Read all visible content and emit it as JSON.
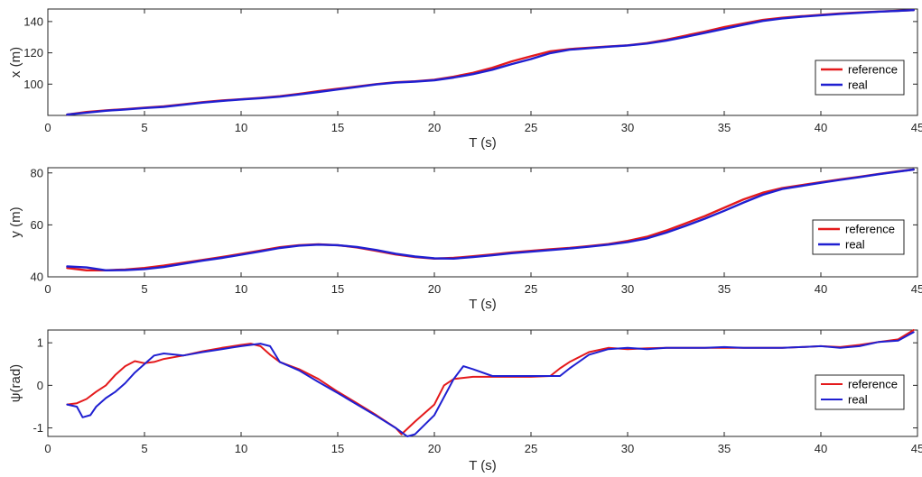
{
  "chart_data": [
    {
      "type": "line",
      "xlabel": "T (s)",
      "ylabel": "x (m)",
      "xlim": [
        0,
        45
      ],
      "ylim": [
        80,
        148
      ],
      "xticks": [
        0,
        5,
        10,
        15,
        20,
        25,
        30,
        35,
        40,
        45
      ],
      "yticks": [
        100,
        120,
        140
      ],
      "legend_position": "right",
      "series": [
        {
          "name": "reference",
          "color": "#e41a1c",
          "x": [
            1,
            2,
            3,
            4,
            5,
            6,
            7,
            8,
            9,
            10,
            11,
            12,
            13,
            14,
            15,
            16,
            17,
            18,
            19,
            20,
            21,
            22,
            23,
            24,
            25,
            26,
            27,
            28,
            29,
            30,
            31,
            32,
            33,
            34,
            35,
            36,
            37,
            38,
            39,
            40,
            41,
            42,
            43,
            44,
            44.8
          ],
          "y": [
            80.5,
            82.2,
            83.2,
            84.0,
            84.9,
            85.8,
            87.1,
            88.5,
            89.5,
            90.3,
            91.2,
            92.3,
            93.8,
            95.5,
            97.0,
            98.5,
            100.0,
            101.2,
            101.8,
            102.8,
            104.8,
            107.2,
            110.5,
            114.5,
            117.8,
            121.0,
            122.4,
            123.2,
            124.0,
            124.8,
            126.2,
            128.4,
            131.0,
            133.6,
            136.4,
            138.8,
            141.0,
            142.4,
            143.4,
            144.3,
            145.1,
            145.8,
            146.4,
            146.9,
            147.3
          ]
        },
        {
          "name": "real",
          "color": "#1f1fd1",
          "x": [
            1,
            2,
            3,
            4,
            5,
            6,
            7,
            8,
            9,
            10,
            11,
            12,
            13,
            14,
            15,
            16,
            17,
            18,
            19,
            20,
            21,
            22,
            23,
            24,
            25,
            26,
            27,
            28,
            29,
            30,
            31,
            32,
            33,
            34,
            35,
            36,
            37,
            38,
            39,
            40,
            41,
            42,
            43,
            44,
            44.8
          ],
          "y": [
            80.5,
            81.8,
            83.0,
            83.8,
            84.7,
            85.5,
            86.8,
            88.2,
            89.3,
            90.2,
            91.0,
            92.0,
            93.4,
            95.0,
            96.6,
            98.2,
            99.8,
            101.0,
            101.6,
            102.5,
            104.2,
            106.4,
            109.2,
            112.8,
            116.0,
            119.8,
            122.0,
            123.0,
            123.9,
            124.7,
            125.9,
            127.8,
            130.2,
            132.8,
            135.4,
            138.0,
            140.4,
            142.0,
            143.1,
            144.0,
            144.9,
            145.6,
            146.3,
            146.8,
            147.3
          ]
        }
      ]
    },
    {
      "type": "line",
      "xlabel": "T (s)",
      "ylabel": "y (m)",
      "xlim": [
        0,
        45
      ],
      "ylim": [
        40,
        82
      ],
      "xticks": [
        0,
        5,
        10,
        15,
        20,
        25,
        30,
        35,
        40,
        45
      ],
      "yticks": [
        40,
        60,
        80
      ],
      "legend_position": "right",
      "series": [
        {
          "name": "reference",
          "color": "#e41a1c",
          "x": [
            1,
            2,
            3,
            4,
            5,
            6,
            7,
            8,
            9,
            10,
            11,
            12,
            13,
            14,
            15,
            16,
            17,
            18,
            19,
            20,
            21,
            22,
            23,
            24,
            25,
            26,
            27,
            28,
            29,
            30,
            31,
            32,
            33,
            34,
            35,
            36,
            37,
            38,
            39,
            40,
            41,
            42,
            43,
            44,
            44.8
          ],
          "y": [
            43.4,
            42.5,
            42.5,
            42.8,
            43.4,
            44.3,
            45.4,
            46.5,
            47.6,
            48.8,
            50.1,
            51.4,
            52.2,
            52.5,
            52.2,
            51.3,
            50.0,
            48.6,
            47.6,
            47.0,
            47.3,
            47.9,
            48.6,
            49.4,
            50.0,
            50.6,
            51.1,
            51.8,
            52.6,
            53.8,
            55.4,
            57.8,
            60.6,
            63.4,
            66.6,
            69.8,
            72.4,
            74.2,
            75.3,
            76.4,
            77.5,
            78.5,
            79.6,
            80.6,
            81.3
          ]
        },
        {
          "name": "real",
          "color": "#1f1fd1",
          "x": [
            1,
            2,
            3,
            4,
            5,
            6,
            7,
            8,
            9,
            10,
            11,
            12,
            13,
            14,
            15,
            16,
            17,
            18,
            19,
            20,
            21,
            22,
            23,
            24,
            25,
            26,
            27,
            28,
            29,
            30,
            31,
            32,
            33,
            34,
            35,
            36,
            37,
            38,
            39,
            40,
            41,
            42,
            43,
            44,
            44.8
          ],
          "y": [
            44.0,
            43.6,
            42.5,
            42.6,
            43.0,
            43.8,
            45.0,
            46.2,
            47.3,
            48.5,
            49.8,
            51.1,
            52.0,
            52.4,
            52.2,
            51.5,
            50.3,
            48.9,
            47.8,
            47.1,
            47.0,
            47.6,
            48.3,
            49.1,
            49.7,
            50.3,
            50.9,
            51.6,
            52.4,
            53.4,
            54.8,
            57.0,
            59.6,
            62.4,
            65.4,
            68.6,
            71.6,
            73.8,
            75.0,
            76.2,
            77.3,
            78.4,
            79.5,
            80.5,
            81.3
          ]
        }
      ]
    },
    {
      "type": "line",
      "xlabel": "T (s)",
      "ylabel": "ψ(rad)",
      "xlim": [
        0,
        45
      ],
      "ylim": [
        -1.2,
        1.3
      ],
      "xticks": [
        0,
        5,
        10,
        15,
        20,
        25,
        30,
        35,
        40,
        45
      ],
      "yticks": [
        -1,
        0,
        1
      ],
      "legend_position": "right",
      "series": [
        {
          "name": "reference",
          "color": "#e41a1c",
          "x": [
            1,
            1.5,
            2,
            2.5,
            3,
            3.5,
            4,
            4.5,
            5,
            5.5,
            6,
            7,
            8,
            9,
            10,
            10.5,
            11,
            11.5,
            12,
            13,
            14,
            15,
            16,
            17,
            18,
            18.3,
            19,
            20,
            20.5,
            21,
            22,
            23,
            24,
            25,
            26,
            26.5,
            27,
            28,
            29,
            30,
            31,
            32,
            33,
            34,
            35,
            36,
            37,
            38,
            39,
            40,
            41,
            42,
            43,
            44,
            44.8
          ],
          "y": [
            -0.45,
            -0.42,
            -0.32,
            -0.15,
            0.0,
            0.25,
            0.45,
            0.57,
            0.52,
            0.55,
            0.62,
            0.7,
            0.8,
            0.88,
            0.95,
            0.98,
            0.92,
            0.72,
            0.55,
            0.38,
            0.15,
            -0.15,
            -0.42,
            -0.7,
            -1.0,
            -1.15,
            -0.85,
            -0.45,
            0.0,
            0.15,
            0.2,
            0.2,
            0.2,
            0.2,
            0.22,
            0.4,
            0.55,
            0.78,
            0.88,
            0.85,
            0.87,
            0.88,
            0.88,
            0.88,
            0.88,
            0.88,
            0.88,
            0.88,
            0.9,
            0.92,
            0.9,
            0.95,
            1.02,
            1.08,
            1.3
          ]
        },
        {
          "name": "real",
          "color": "#1f1fd1",
          "x": [
            1,
            1.5,
            1.8,
            2.2,
            2.5,
            3,
            3.5,
            4,
            4.5,
            5,
            5.5,
            6,
            7,
            8,
            9,
            10,
            11,
            11.5,
            12,
            13,
            14,
            15,
            16,
            17,
            18,
            18.6,
            19,
            20,
            21,
            21.5,
            22,
            23,
            24,
            25,
            26,
            26.5,
            27,
            28,
            29,
            30,
            31,
            32,
            33,
            34,
            35,
            36,
            37,
            38,
            39,
            40,
            41,
            42,
            43,
            44,
            44.8
          ],
          "y": [
            -0.45,
            -0.5,
            -0.75,
            -0.7,
            -0.5,
            -0.3,
            -0.15,
            0.05,
            0.3,
            0.5,
            0.7,
            0.75,
            0.7,
            0.78,
            0.85,
            0.92,
            0.98,
            0.92,
            0.55,
            0.35,
            0.08,
            -0.18,
            -0.45,
            -0.72,
            -1.0,
            -1.2,
            -1.15,
            -0.7,
            0.15,
            0.45,
            0.38,
            0.22,
            0.22,
            0.22,
            0.22,
            0.22,
            0.4,
            0.72,
            0.85,
            0.88,
            0.85,
            0.88,
            0.88,
            0.88,
            0.9,
            0.88,
            0.88,
            0.88,
            0.9,
            0.92,
            0.88,
            0.92,
            1.02,
            1.05,
            1.25
          ]
        }
      ]
    }
  ]
}
